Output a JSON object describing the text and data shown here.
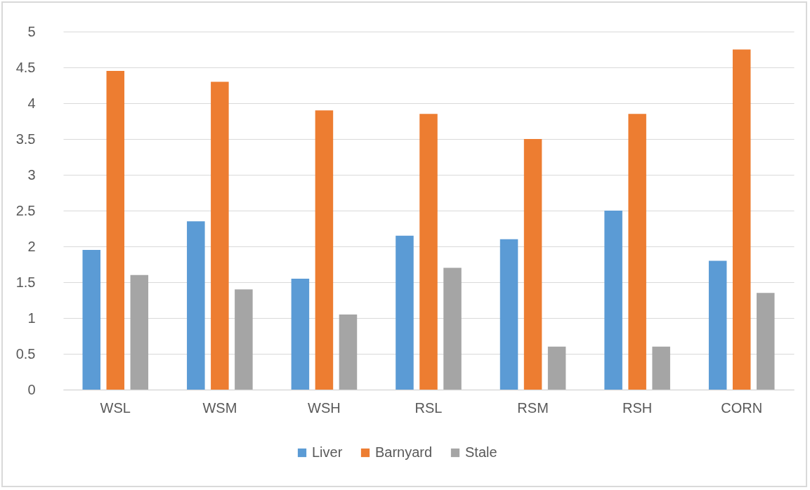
{
  "chart_data": {
    "type": "bar",
    "categories": [
      "WSL",
      "WSM",
      "WSH",
      "RSL",
      "RSM",
      "RSH",
      "CORN"
    ],
    "series": [
      {
        "name": "Liver",
        "color": "#5b9bd5",
        "values": [
          1.95,
          2.35,
          1.55,
          2.15,
          2.1,
          2.5,
          1.8
        ]
      },
      {
        "name": "Barnyard",
        "color": "#ed7d31",
        "values": [
          4.45,
          4.3,
          3.9,
          3.85,
          3.5,
          3.85,
          4.75
        ]
      },
      {
        "name": "Stale",
        "color": "#a5a5a5",
        "values": [
          1.6,
          1.4,
          1.05,
          1.7,
          0.6,
          0.6,
          1.35
        ]
      }
    ],
    "ylim": [
      0,
      5
    ],
    "yticks": [
      0,
      0.5,
      1,
      1.5,
      2,
      2.5,
      3,
      3.5,
      4,
      4.5,
      5
    ],
    "grid": "y",
    "legend": "bottom"
  }
}
